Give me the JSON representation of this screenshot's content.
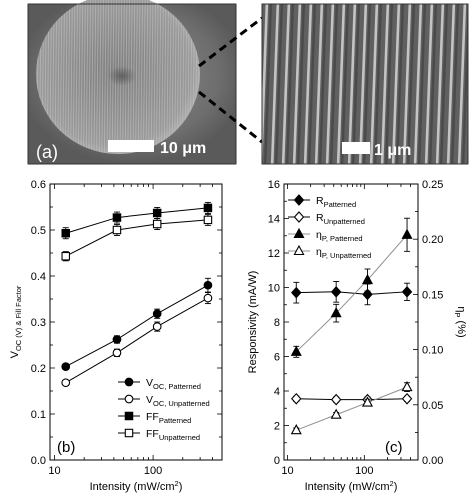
{
  "panel_a": {
    "label": "(a)",
    "scale_bar": "10 μm"
  },
  "panel_a_zoom": {
    "scale_bar": "1 μm"
  },
  "chart_data": [
    {
      "type": "line",
      "panel": "(b)",
      "xlabel": "Intensity (mW/cm²)",
      "ylabel": "V_OC (V) & Fill Factor",
      "xscale": "log",
      "xlim": [
        9,
        500
      ],
      "ylim": [
        0.0,
        0.6
      ],
      "x_ticks": [
        10,
        100
      ],
      "y_ticks": [
        0.0,
        0.1,
        0.2,
        0.3,
        0.4,
        0.5,
        0.6
      ],
      "legend_position": "bottom-right",
      "series": [
        {
          "name": "V_OC, Patterned",
          "marker": "filled-circle",
          "x": [
            13,
            43,
            110,
            360
          ],
          "y": [
            0.203,
            0.262,
            0.318,
            0.38
          ],
          "yerr": [
            0.006,
            0.008,
            0.01,
            0.015
          ]
        },
        {
          "name": "V_OC, Unpatterned",
          "marker": "open-circle",
          "x": [
            13,
            43,
            110,
            360
          ],
          "y": [
            0.168,
            0.233,
            0.29,
            0.352
          ],
          "yerr": [
            0.005,
            0.008,
            0.01,
            0.012
          ]
        },
        {
          "name": "FF_Patterned",
          "marker": "filled-square",
          "x": [
            13,
            43,
            110,
            360
          ],
          "y": [
            0.493,
            0.527,
            0.537,
            0.548
          ],
          "yerr": [
            0.012,
            0.012,
            0.012,
            0.012
          ]
        },
        {
          "name": "FF_Unpatterned",
          "marker": "open-square",
          "x": [
            13,
            43,
            110,
            360
          ],
          "y": [
            0.443,
            0.5,
            0.513,
            0.522
          ],
          "yerr": [
            0.01,
            0.012,
            0.012,
            0.012
          ]
        }
      ]
    },
    {
      "type": "line",
      "panel": "(c)",
      "xlabel": "Intensity (mW/cm²)",
      "ylabel": "Responsivity (mA/W)",
      "y2label": "η_P (%)",
      "xscale": "log",
      "xlim": [
        9,
        500
      ],
      "ylim": [
        0,
        16
      ],
      "y2lim": [
        0.0,
        0.25
      ],
      "x_ticks": [
        10,
        100
      ],
      "y_ticks": [
        0,
        2,
        4,
        6,
        8,
        10,
        12,
        14,
        16
      ],
      "y2_ticks": [
        0.0,
        0.05,
        0.1,
        0.15,
        0.2,
        0.25
      ],
      "legend_position": "top-left",
      "series": [
        {
          "name": "R_Patterned",
          "marker": "filled-diamond",
          "axis": "left",
          "x": [
            13,
            43,
            110,
            360
          ],
          "y": [
            9.7,
            9.75,
            9.6,
            9.75
          ],
          "yerr": [
            0.6,
            0.6,
            0.6,
            0.5
          ]
        },
        {
          "name": "R_Unpatterned",
          "marker": "open-diamond",
          "axis": "left",
          "x": [
            13,
            43,
            110,
            360
          ],
          "y": [
            3.55,
            3.5,
            3.5,
            3.55
          ],
          "yerr": [
            0.15,
            0.15,
            0.15,
            0.15
          ]
        },
        {
          "name": "η_P, Patterned",
          "marker": "filled-triangle",
          "axis": "right",
          "x": [
            13,
            43,
            110,
            360
          ],
          "y": [
            0.098,
            0.133,
            0.163,
            0.204
          ],
          "yerr": [
            0.005,
            0.008,
            0.01,
            0.015
          ]
        },
        {
          "name": "η_P, Unpatterned",
          "marker": "open-triangle",
          "axis": "right",
          "x": [
            13,
            43,
            110,
            360
          ],
          "y": [
            0.027,
            0.041,
            0.052,
            0.066
          ],
          "yerr": [
            0.002,
            0.002,
            0.003,
            0.004
          ]
        }
      ]
    }
  ]
}
